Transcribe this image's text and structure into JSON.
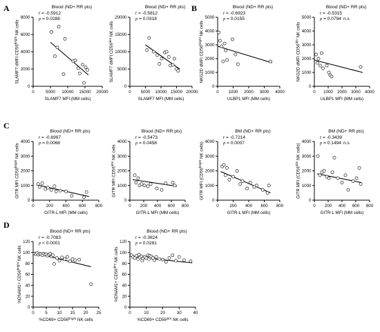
{
  "panel_letters": [
    "A",
    "B",
    "C",
    "D"
  ],
  "chart_data": [
    {
      "type": "scatter",
      "panel": "A",
      "title": "Blood (ND+ RR pts)",
      "stats": {
        "r": "r = -0.5912",
        "p_label": "p",
        "p": " = 0.0288",
        "ns": ""
      },
      "xlabel": "SLAMF7 MFI (MM cells)",
      "ylabel_parts": [
        "SLAMF7 dMFI CD56",
        "bright",
        " NK cells"
      ],
      "xlim": [
        0,
        20000
      ],
      "ylim": [
        0,
        8000
      ],
      "xticks": [
        0,
        5000,
        10000,
        15000,
        20000
      ],
      "xtick_labels": [
        "0",
        "5000",
        "10000",
        "15000",
        "20000"
      ],
      "yticks": [
        0,
        2000,
        4000,
        6000,
        8000
      ],
      "ytick_labels": [
        "0",
        "2000",
        "4000",
        "6000",
        "8000"
      ],
      "points": [
        [
          5300,
          6300
        ],
        [
          6300,
          3500
        ],
        [
          7000,
          4500
        ],
        [
          7400,
          6900
        ],
        [
          9200,
          5500
        ],
        [
          8800,
          1400
        ],
        [
          11600,
          2900
        ],
        [
          12200,
          3000
        ],
        [
          13000,
          2100
        ],
        [
          13500,
          1500
        ],
        [
          14300,
          2500
        ],
        [
          14700,
          400
        ],
        [
          15200,
          2200
        ],
        [
          15700,
          1900
        ]
      ],
      "fit": [
        [
          5000,
          5100
        ],
        [
          16000,
          1300
        ]
      ]
    },
    {
      "type": "scatter",
      "panel": "A",
      "title": "Blood (ND+ RR pts)",
      "stats": {
        "r": "r = -0.5812",
        "p_label": "p",
        "p": " = 0.0318",
        "ns": ""
      },
      "xlabel": "SLAMF7 MFI (MM cells)",
      "ylabel_parts": [
        "SLAMF7 dMFI CD56",
        "dim",
        " NK cells"
      ],
      "xlim": [
        0,
        20000
      ],
      "ylim": [
        0,
        20000
      ],
      "xticks": [
        0,
        5000,
        10000,
        15000,
        20000
      ],
      "xtick_labels": [
        "0",
        "5000",
        "10000",
        "15000",
        "20000"
      ],
      "yticks": [
        0,
        5000,
        10000,
        15000,
        20000
      ],
      "ytick_labels": [
        "0",
        "5000",
        "10000",
        "15000",
        "20000"
      ],
      "points": [
        [
          5500,
          10500
        ],
        [
          6200,
          14000
        ],
        [
          7600,
          10000
        ],
        [
          8800,
          9000
        ],
        [
          9500,
          6500
        ],
        [
          10200,
          8000
        ],
        [
          11200,
          9800
        ],
        [
          11800,
          10000
        ],
        [
          12500,
          8500
        ],
        [
          13000,
          6000
        ],
        [
          13800,
          6200
        ],
        [
          14300,
          8000
        ],
        [
          15000,
          5000
        ],
        [
          15500,
          4500
        ]
      ],
      "fit": [
        [
          5000,
          12000
        ],
        [
          16000,
          5000
        ]
      ]
    },
    {
      "type": "scatter",
      "panel": "B",
      "title": "Blood (ND+ RR pts)",
      "stats": {
        "r": "r = -0.6923",
        "p_label": "p",
        "p": " = 0.0155",
        "ns": ""
      },
      "xlabel": "ULBP1 MFI (MM cells)",
      "ylabel_parts": [
        "NKG2D dMFI CD56",
        "bright",
        " NK cells"
      ],
      "xlim": [
        0,
        4000
      ],
      "ylim": [
        0,
        5000
      ],
      "xticks": [
        0,
        1000,
        2000,
        3000,
        4000
      ],
      "xtick_labels": [
        "0",
        "1000",
        "2000",
        "3000",
        "4000"
      ],
      "yticks": [
        0,
        1000,
        2000,
        3000,
        4000,
        5000
      ],
      "ytick_labels": [
        "0",
        "1000",
        "2000",
        "3000",
        "4000",
        "5000"
      ],
      "points": [
        [
          80,
          3900
        ],
        [
          150,
          3300
        ],
        [
          250,
          2900
        ],
        [
          350,
          1800
        ],
        [
          450,
          3100
        ],
        [
          520,
          2600
        ],
        [
          600,
          1900
        ],
        [
          950,
          3400
        ],
        [
          1150,
          2300
        ],
        [
          1300,
          1600
        ],
        [
          3400,
          1800
        ]
      ],
      "fit": [
        [
          0,
          2900
        ],
        [
          3500,
          1700
        ]
      ]
    },
    {
      "type": "scatter",
      "panel": "B",
      "title": "Blood (ND+ RR pts)",
      "stats": {
        "r": "r = -0.5315",
        "p_label": "p",
        "p": " = 0.0794",
        "ns": "n.s"
      },
      "xlabel": "ULBP1 MFI (MM cells)",
      "ylabel_parts": [
        "NKG2D dMFI CD56",
        "dim",
        " NK cells"
      ],
      "xlim": [
        0,
        4000
      ],
      "ylim": [
        0,
        5000
      ],
      "xticks": [
        0,
        1000,
        2000,
        3000,
        4000
      ],
      "xtick_labels": [
        "0",
        "1000",
        "2000",
        "3000",
        "4000"
      ],
      "yticks": [
        0,
        1000,
        2000,
        3000,
        4000,
        5000
      ],
      "ytick_labels": [
        "0",
        "1000",
        "2000",
        "3000",
        "4000",
        "5000"
      ],
      "points": [
        [
          120,
          2300
        ],
        [
          220,
          1700
        ],
        [
          300,
          2000
        ],
        [
          420,
          1500
        ],
        [
          520,
          2400
        ],
        [
          620,
          1300
        ],
        [
          900,
          1500
        ],
        [
          1050,
          1000
        ],
        [
          1150,
          800
        ],
        [
          1250,
          700
        ],
        [
          3350,
          1400
        ]
      ],
      "fit": [
        [
          0,
          1900
        ],
        [
          3500,
          1000
        ]
      ]
    },
    {
      "type": "scatter",
      "panel": "C",
      "title": "Blood (ND+ RR pts)",
      "stats": {
        "r": "r = -0.6997",
        "p_label": "p",
        "p": " = 0.0068",
        "ns": ""
      },
      "xlabel": "GITR-L MFI (MM cells)",
      "ylabel_parts": [
        "GITR MFI CD56",
        "bright",
        " NK cells"
      ],
      "xlim": [
        0,
        800
      ],
      "ylim": [
        0,
        4000
      ],
      "xticks": [
        0,
        200,
        400,
        600,
        800
      ],
      "xtick_labels": [
        "0",
        "200",
        "400",
        "600",
        "800"
      ],
      "yticks": [
        0,
        1000,
        2000,
        3000,
        4000
      ],
      "ytick_labels": [
        "0",
        "1000",
        "2000",
        "3000",
        "4000"
      ],
      "points": [
        [
          60,
          1100
        ],
        [
          80,
          900
        ],
        [
          110,
          1150
        ],
        [
          150,
          750
        ],
        [
          180,
          850
        ],
        [
          220,
          700
        ],
        [
          260,
          950
        ],
        [
          280,
          600
        ],
        [
          330,
          650
        ],
        [
          400,
          600
        ],
        [
          470,
          300
        ],
        [
          620,
          200
        ],
        [
          650,
          550
        ]
      ],
      "fit": [
        [
          40,
          1050
        ],
        [
          680,
          250
        ]
      ]
    },
    {
      "type": "scatter",
      "panel": "C",
      "title": "Blood (ND+ RR pts)",
      "stats": {
        "r": "r = -0.5473",
        "p_label": "p",
        "p": " = 0.0458",
        "ns": ""
      },
      "xlabel": "GITR-L MFI (MM cells)",
      "ylabel_parts": [
        "GITR MFI CD56",
        "dim",
        " NK cells"
      ],
      "xlim": [
        0,
        800
      ],
      "ylim": [
        0,
        4000
      ],
      "xticks": [
        0,
        200,
        400,
        600,
        800
      ],
      "xtick_labels": [
        "0",
        "200",
        "400",
        "600",
        "800"
      ],
      "yticks": [
        0,
        1000,
        2000,
        3000,
        4000
      ],
      "ytick_labels": [
        "0",
        "1000",
        "2000",
        "3000",
        "4000"
      ],
      "points": [
        [
          70,
          1700
        ],
        [
          90,
          1200
        ],
        [
          120,
          1500
        ],
        [
          140,
          1000
        ],
        [
          170,
          1100
        ],
        [
          210,
          1000
        ],
        [
          260,
          950
        ],
        [
          300,
          1100
        ],
        [
          390,
          800
        ],
        [
          460,
          700
        ],
        [
          520,
          1150
        ],
        [
          620,
          1200
        ],
        [
          650,
          1000
        ]
      ],
      "fit": [
        [
          40,
          1400
        ],
        [
          680,
          950
        ]
      ]
    },
    {
      "type": "scatter",
      "panel": "C",
      "title": "BM (ND+ RR pts)",
      "stats": {
        "r": "r = -0.7214",
        "p_label": "p",
        "p": " = 0.0007",
        "ns": ""
      },
      "xlabel": "GITR-L MFI (MM cells)",
      "ylabel_parts": [
        "GITR MFI (CD56",
        "bright",
        " NK cells)"
      ],
      "xlim": [
        0,
        800
      ],
      "ylim": [
        0,
        4000
      ],
      "xticks": [
        0,
        200,
        400,
        600,
        800
      ],
      "xtick_labels": [
        "0",
        "200",
        "400",
        "600",
        "800"
      ],
      "yticks": [
        0,
        1000,
        2000,
        3000,
        4000
      ],
      "ytick_labels": [
        "0",
        "1000",
        "2000",
        "3000",
        "4000"
      ],
      "points": [
        [
          60,
          2300
        ],
        [
          80,
          2400
        ],
        [
          100,
          1700
        ],
        [
          120,
          2200
        ],
        [
          150,
          1400
        ],
        [
          200,
          1600
        ],
        [
          250,
          2000
        ],
        [
          290,
          1100
        ],
        [
          320,
          1300
        ],
        [
          380,
          800
        ],
        [
          420,
          1200
        ],
        [
          470,
          900
        ],
        [
          500,
          1000
        ],
        [
          580,
          700
        ],
        [
          640,
          500
        ],
        [
          660,
          1000
        ]
      ],
      "fit": [
        [
          40,
          1950
        ],
        [
          680,
          500
        ]
      ]
    },
    {
      "type": "scatter",
      "panel": "C",
      "title": "BM (ND+ RR pts)",
      "stats": {
        "r": "r = -0.3439",
        "p_label": "p",
        "p": " = 0.1494",
        "ns": "n.s"
      },
      "xlabel": "GITR-L MFI (MM cells)",
      "ylabel_parts": [
        "GITR MFI (CD56",
        "dim",
        " NK cells)"
      ],
      "xlim": [
        0,
        800
      ],
      "ylim": [
        0,
        4000
      ],
      "xticks": [
        0,
        200,
        400,
        600,
        800
      ],
      "xtick_labels": [
        "0",
        "200",
        "400",
        "600",
        "800"
      ],
      "yticks": [
        0,
        1000,
        2000,
        3000,
        4000
      ],
      "ytick_labels": [
        "0",
        "1000",
        "2000",
        "3000",
        "4000"
      ],
      "points": [
        [
          50,
          3000
        ],
        [
          80,
          1700
        ],
        [
          110,
          1900
        ],
        [
          140,
          2000
        ],
        [
          180,
          1600
        ],
        [
          210,
          1500
        ],
        [
          260,
          1900
        ],
        [
          290,
          2900
        ],
        [
          340,
          1500
        ],
        [
          400,
          1200
        ],
        [
          450,
          1700
        ],
        [
          490,
          700
        ],
        [
          560,
          1300
        ],
        [
          610,
          1500
        ],
        [
          650,
          2200
        ],
        [
          670,
          1100
        ]
      ],
      "fit": [
        [
          40,
          1800
        ],
        [
          680,
          1200
        ]
      ]
    },
    {
      "type": "scatter",
      "panel": "D",
      "title": "Blood (ND+ RR pts)",
      "stats": {
        "r": "r = -0.7083",
        "p_label": "p",
        "p": " < 0.0001",
        "ns": ""
      },
      "xlabel_parts": [
        "%CD69+ CD56",
        "bright",
        " NK cells"
      ],
      "ylabel_parts": [
        "%DNAM1+ CD56",
        "bright",
        " NK cells"
      ],
      "xlim": [
        0,
        25
      ],
      "ylim": [
        0,
        120
      ],
      "xticks": [
        0,
        5,
        10,
        15,
        20,
        25
      ],
      "xtick_labels": [
        "0",
        "5",
        "10",
        "15",
        "20",
        "25"
      ],
      "yticks": [
        0,
        20,
        40,
        60,
        80,
        100,
        120
      ],
      "ytick_labels": [
        "0",
        "20",
        "40",
        "60",
        "80",
        "100",
        "120"
      ],
      "points": [
        [
          0.5,
          98
        ],
        [
          1,
          97
        ],
        [
          1.5,
          99
        ],
        [
          2,
          96
        ],
        [
          2.5,
          98
        ],
        [
          3,
          97
        ],
        [
          3.5,
          95
        ],
        [
          4,
          98
        ],
        [
          4.5,
          96
        ],
        [
          5,
          97
        ],
        [
          5.5,
          94
        ],
        [
          6,
          96
        ],
        [
          6.5,
          98
        ],
        [
          7,
          93
        ],
        [
          7.5,
          95
        ],
        [
          8,
          79
        ],
        [
          9,
          90
        ],
        [
          10,
          85
        ],
        [
          11,
          91
        ],
        [
          12,
          88
        ],
        [
          13,
          92
        ],
        [
          14,
          84
        ],
        [
          15,
          88
        ],
        [
          16,
          86
        ],
        [
          17.5,
          87
        ],
        [
          22,
          42
        ]
      ],
      "fit": [
        [
          0,
          100
        ],
        [
          22,
          74
        ]
      ]
    },
    {
      "type": "scatter",
      "panel": "D",
      "title": "Blood (ND+ RR pts)",
      "stats": {
        "r": "r = -0.3824",
        "p_label": "p",
        "p": " = 0.0281",
        "ns": ""
      },
      "xlabel_parts": [
        "%CD69+ CD56",
        "dim",
        " NK cells"
      ],
      "ylabel_parts": [
        "%DNAM1+ CD56",
        "dim",
        " NK cells"
      ],
      "xlim": [
        0,
        40
      ],
      "ylim": [
        0,
        120
      ],
      "xticks": [
        0,
        10,
        20,
        30,
        40
      ],
      "xtick_labels": [
        "0",
        "10",
        "20",
        "30",
        "40"
      ],
      "yticks": [
        0,
        20,
        40,
        60,
        80,
        100,
        120
      ],
      "ytick_labels": [
        "0",
        "20",
        "40",
        "60",
        "80",
        "100",
        "120"
      ],
      "points": [
        [
          1,
          95
        ],
        [
          2,
          92
        ],
        [
          3,
          90
        ],
        [
          4,
          94
        ],
        [
          5,
          88
        ],
        [
          5.5,
          96
        ],
        [
          6,
          91
        ],
        [
          7,
          93
        ],
        [
          7.5,
          85
        ],
        [
          8,
          89
        ],
        [
          9,
          92
        ],
        [
          10,
          90
        ],
        [
          11,
          95
        ],
        [
          11.5,
          88
        ],
        [
          12,
          94
        ],
        [
          12.5,
          91
        ],
        [
          13,
          93
        ],
        [
          14,
          90
        ],
        [
          15,
          86
        ],
        [
          16,
          92
        ],
        [
          18,
          88
        ],
        [
          20,
          87
        ],
        [
          22,
          83
        ],
        [
          24,
          90
        ],
        [
          26,
          95
        ],
        [
          28,
          85
        ],
        [
          30,
          92
        ],
        [
          33,
          86
        ],
        [
          37,
          84
        ]
      ],
      "fit": [
        [
          0,
          93
        ],
        [
          38,
          81
        ]
      ]
    }
  ]
}
